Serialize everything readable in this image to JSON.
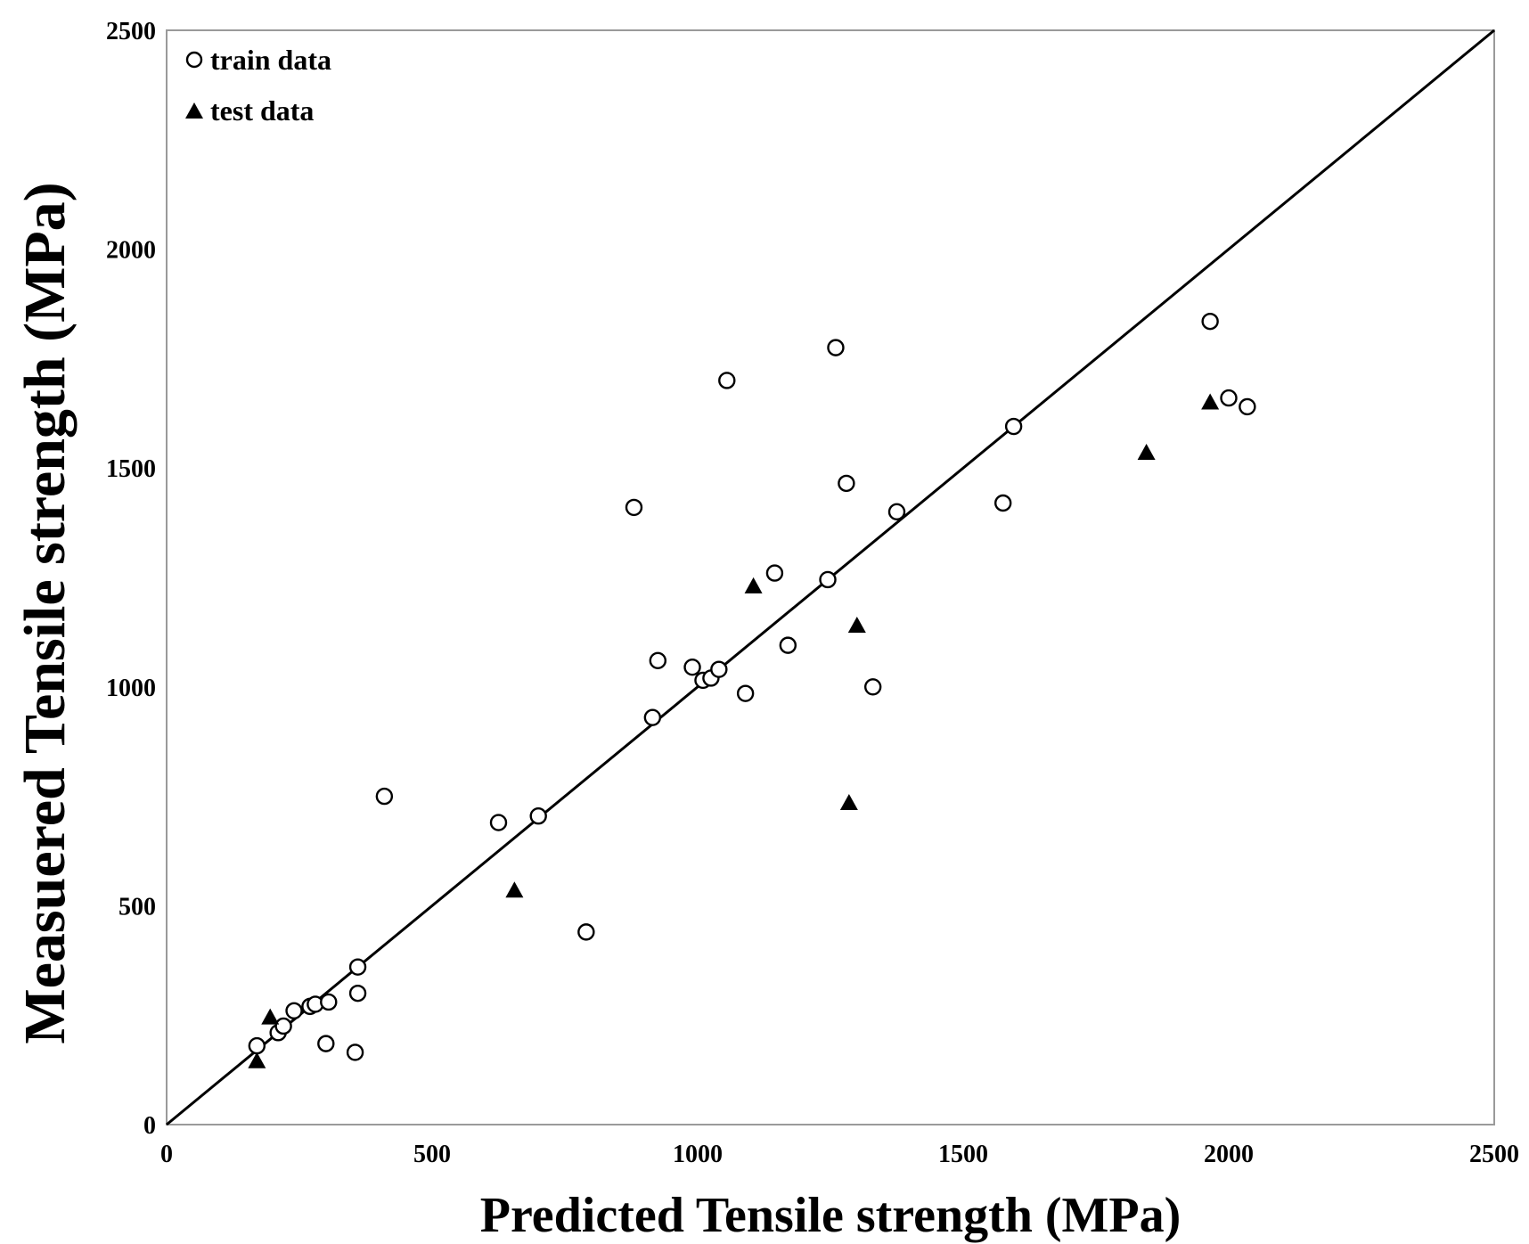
{
  "chart_data": {
    "type": "scatter",
    "title": "",
    "xlabel": "Predicted Tensile strength (MPa)",
    "ylabel": "Measuered Tensile strength (MPa)",
    "xlim": [
      0,
      2500
    ],
    "ylim": [
      0,
      2500
    ],
    "xticks": [
      "0",
      "500",
      "1000",
      "1500",
      "2000",
      "2500"
    ],
    "yticks": [
      "0",
      "500",
      "1000",
      "1500",
      "2000",
      "2500"
    ],
    "reference_line": {
      "name": "y = x",
      "from": [
        0,
        0
      ],
      "to": [
        2500,
        2500
      ]
    },
    "legend": {
      "position": "top-left"
    },
    "series": [
      {
        "name": "train data",
        "marker": "open-circle",
        "x": [
          170,
          210,
          220,
          240,
          270,
          280,
          305,
          300,
          355,
          360,
          360,
          410,
          625,
          700,
          790,
          880,
          915,
          925,
          990,
          1010,
          1025,
          1040,
          1090,
          1055,
          1145,
          1170,
          1245,
          1260,
          1280,
          1330,
          1375,
          1575,
          1595,
          1965,
          2000,
          2035
        ],
        "y": [
          180,
          210,
          225,
          260,
          270,
          275,
          280,
          185,
          165,
          300,
          360,
          750,
          690,
          705,
          440,
          1410,
          930,
          1060,
          1045,
          1015,
          1020,
          1040,
          985,
          1700,
          1260,
          1095,
          1245,
          1775,
          1465,
          1000,
          1400,
          1420,
          1595,
          1835,
          1660,
          1640
        ]
      },
      {
        "name": "test data",
        "marker": "filled-triangle",
        "x": [
          170,
          195,
          655,
          1105,
          1285,
          1300,
          1845,
          1965
        ],
        "y": [
          145,
          245,
          535,
          1230,
          735,
          1140,
          1535,
          1650
        ]
      }
    ]
  }
}
